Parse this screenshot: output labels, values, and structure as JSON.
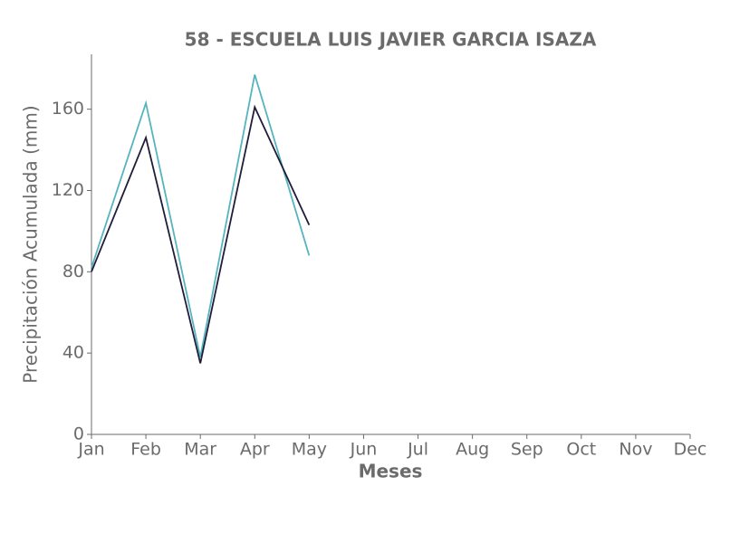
{
  "chart_data": {
    "type": "line",
    "title": "58 - ESCUELA LUIS JAVIER GARCIA ISAZA",
    "xlabel": "Meses",
    "ylabel": "Precipitación Acumulada (mm)",
    "categories": [
      "Jan",
      "Feb",
      "Mar",
      "Apr",
      "May",
      "Jun",
      "Jul",
      "Aug",
      "Sep",
      "Oct",
      "Nov",
      "Dec"
    ],
    "series": [
      {
        "color": "#56b4be",
        "values": [
          82,
          163,
          38,
          177,
          88,
          null,
          null,
          null,
          null,
          null,
          null,
          null
        ]
      },
      {
        "color": "#1f1d3a",
        "values": [
          80,
          146,
          35,
          161,
          103,
          null,
          null,
          null,
          null,
          null,
          null,
          null
        ]
      }
    ],
    "ylim": [
      0,
      187
    ],
    "yticks": [
      0,
      40,
      80,
      120,
      160
    ],
    "grid": false
  }
}
